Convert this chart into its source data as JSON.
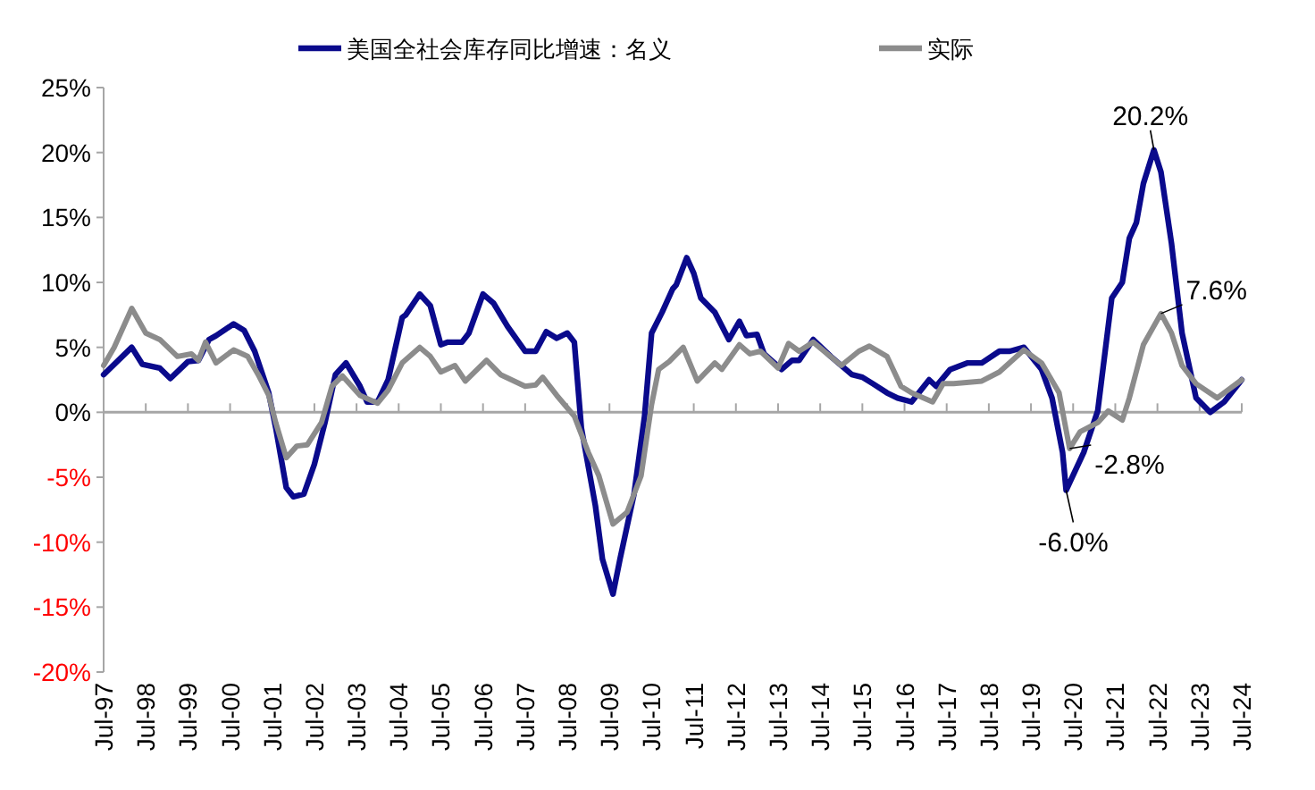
{
  "chart_data": {
    "type": "line",
    "legend": "top",
    "marker": "none",
    "line_style": "solid",
    "xlim": [
      "1997-07",
      "2024-07"
    ],
    "xticks": [
      {
        "value": "1997-07",
        "label": "Jul-97"
      },
      {
        "value": "1998-07",
        "label": "Jul-98"
      },
      {
        "value": "1999-07",
        "label": "Jul-99"
      },
      {
        "value": "2000-07",
        "label": "Jul-00"
      },
      {
        "value": "2001-07",
        "label": "Jul-01"
      },
      {
        "value": "2002-07",
        "label": "Jul-02"
      },
      {
        "value": "2003-07",
        "label": "Jul-03"
      },
      {
        "value": "2004-07",
        "label": "Jul-04"
      },
      {
        "value": "2005-07",
        "label": "Jul-05"
      },
      {
        "value": "2006-07",
        "label": "Jul-06"
      },
      {
        "value": "2007-07",
        "label": "Jul-07"
      },
      {
        "value": "2008-07",
        "label": "Jul-08"
      },
      {
        "value": "2009-07",
        "label": "Jul-09"
      },
      {
        "value": "2010-07",
        "label": "Jul-10"
      },
      {
        "value": "2011-07",
        "label": "Jul-11"
      },
      {
        "value": "2012-07",
        "label": "Jul-12"
      },
      {
        "value": "2013-07",
        "label": "Jul-13"
      },
      {
        "value": "2014-07",
        "label": "Jul-14"
      },
      {
        "value": "2015-07",
        "label": "Jul-15"
      },
      {
        "value": "2016-07",
        "label": "Jul-16"
      },
      {
        "value": "2017-07",
        "label": "Jul-17"
      },
      {
        "value": "2018-07",
        "label": "Jul-18"
      },
      {
        "value": "2019-07",
        "label": "Jul-19"
      },
      {
        "value": "2020-07",
        "label": "Jul-20"
      },
      {
        "value": "2021-07",
        "label": "Jul-21"
      },
      {
        "value": "2022-07",
        "label": "Jul-22"
      },
      {
        "value": "2023-07",
        "label": "Jul-23"
      },
      {
        "value": "2024-07",
        "label": "Jul-24"
      }
    ],
    "ylim": [
      -20,
      25
    ],
    "yticks": [
      {
        "value": -20,
        "label": "-20%"
      },
      {
        "value": -15,
        "label": "-15%"
      },
      {
        "value": -10,
        "label": "-10%"
      },
      {
        "value": -5,
        "label": "-5%"
      },
      {
        "value": 0,
        "label": "0%"
      },
      {
        "value": 5,
        "label": "5%"
      },
      {
        "value": 10,
        "label": "10%"
      },
      {
        "value": 15,
        "label": "15%"
      },
      {
        "value": 20,
        "label": "20%"
      },
      {
        "value": 25,
        "label": "25%"
      }
    ],
    "series": [
      {
        "name": "美国全社会库存同比增速：名义",
        "color": "#0a0a8c",
        "x": [
          "1997-07",
          "1998-03",
          "1998-06",
          "1998-11",
          "1999-02",
          "1999-07",
          "1999-10",
          "2000-01",
          "2000-03",
          "2000-08",
          "2000-11",
          "2001-02",
          "2001-06",
          "2001-08",
          "2001-11",
          "2002-01",
          "2002-04",
          "2002-07",
          "2002-10",
          "2003-01",
          "2003-04",
          "2003-08",
          "2003-10",
          "2004-01",
          "2004-04",
          "2004-08",
          "2004-09",
          "2005-01",
          "2005-04",
          "2005-07",
          "2005-09",
          "2006-01",
          "2006-03",
          "2006-07",
          "2006-10",
          "2007-02",
          "2007-07",
          "2007-10",
          "2008-01",
          "2008-04",
          "2008-07",
          "2008-09",
          "2008-11",
          "2009-03",
          "2009-05",
          "2009-08",
          "2009-10",
          "2010-02",
          "2010-05",
          "2010-07",
          "2010-10",
          "2011-01",
          "2011-02",
          "2011-05",
          "2011-07",
          "2011-09",
          "2012-01",
          "2012-05",
          "2012-08",
          "2012-10",
          "2013-01",
          "2013-03",
          "2013-08",
          "2013-11",
          "2014-01",
          "2014-05",
          "2014-10",
          "2015-04",
          "2015-07",
          "2015-10",
          "2016-02",
          "2016-05",
          "2016-09",
          "2017-02",
          "2017-04",
          "2017-08",
          "2018-01",
          "2018-05",
          "2018-10",
          "2019-01",
          "2019-05",
          "2019-10",
          "2020-01",
          "2020-04",
          "2020-05",
          "2020-10",
          "2021-02",
          "2021-06",
          "2021-09",
          "2021-11",
          "2022-01",
          "2022-03",
          "2022-06",
          "2022-08",
          "2022-11",
          "2023-02",
          "2023-06",
          "2023-10",
          "2024-02",
          "2024-07"
        ],
        "values": [
          2.9,
          5.0,
          3.7,
          3.4,
          2.6,
          3.9,
          4.0,
          5.6,
          5.9,
          6.8,
          6.3,
          4.7,
          1.5,
          -1.2,
          -5.8,
          -6.5,
          -6.3,
          -4.0,
          -0.8,
          2.9,
          3.8,
          2.0,
          0.8,
          0.8,
          2.5,
          7.3,
          7.5,
          9.1,
          8.2,
          5.2,
          5.4,
          5.4,
          6.1,
          9.1,
          8.4,
          6.6,
          4.7,
          4.7,
          6.2,
          5.7,
          6.1,
          5.4,
          -1.2,
          -7.2,
          -11.3,
          -14.0,
          -11.3,
          -6.3,
          -0.3,
          6.1,
          7.7,
          9.5,
          9.8,
          11.9,
          10.7,
          8.8,
          7.7,
          5.6,
          7.0,
          5.9,
          6.0,
          4.5,
          3.3,
          4.0,
          4.0,
          5.6,
          4.3,
          2.9,
          2.7,
          2.2,
          1.5,
          1.1,
          0.8,
          2.5,
          2.0,
          3.3,
          3.8,
          3.8,
          4.7,
          4.7,
          5.0,
          3.3,
          1.1,
          -3.1,
          -6.0,
          -3.1,
          0.1,
          8.8,
          10.0,
          13.4,
          14.6,
          17.6,
          20.2,
          18.5,
          13.0,
          6.1,
          1.1,
          0.0,
          0.8,
          2.5
        ]
      },
      {
        "name": "实际",
        "color": "#8c8c8c",
        "x": [
          "1997-07",
          "1997-10",
          "1998-03",
          "1998-07",
          "1998-11",
          "1999-04",
          "1999-08",
          "1999-10",
          "1999-12",
          "2000-03",
          "2000-08",
          "2000-12",
          "2001-03",
          "2001-06",
          "2001-08",
          "2001-11",
          "2002-02",
          "2002-05",
          "2002-09",
          "2002-12",
          "2003-03",
          "2003-08",
          "2004-01",
          "2004-04",
          "2004-08",
          "2005-01",
          "2005-04",
          "2005-07",
          "2005-11",
          "2006-02",
          "2006-08",
          "2006-12",
          "2007-07",
          "2007-10",
          "2007-12",
          "2008-04",
          "2008-09",
          "2009-01",
          "2009-04",
          "2009-08",
          "2009-12",
          "2010-04",
          "2010-07",
          "2010-09",
          "2010-12",
          "2011-04",
          "2011-08",
          "2012-01",
          "2012-03",
          "2012-08",
          "2012-11",
          "2013-02",
          "2013-07",
          "2013-10",
          "2014-01",
          "2014-05",
          "2015-01",
          "2015-06",
          "2015-09",
          "2016-02",
          "2016-06",
          "2016-09",
          "2017-03",
          "2017-06",
          "2017-09",
          "2018-05",
          "2018-10",
          "2019-05",
          "2019-10",
          "2020-03",
          "2020-06",
          "2020-09",
          "2021-02",
          "2021-05",
          "2021-09",
          "2021-11",
          "2022-03",
          "2022-08",
          "2022-11",
          "2023-02",
          "2023-06",
          "2023-12",
          "2024-07"
        ],
        "values": [
          3.6,
          5.0,
          8.0,
          6.1,
          5.6,
          4.3,
          4.5,
          4.0,
          5.4,
          3.8,
          4.8,
          4.3,
          2.9,
          1.3,
          -0.8,
          -3.5,
          -2.6,
          -2.5,
          -0.8,
          2.0,
          2.8,
          1.3,
          0.7,
          1.7,
          3.8,
          5.0,
          4.3,
          3.1,
          3.6,
          2.4,
          4.0,
          2.9,
          2.0,
          2.1,
          2.7,
          1.3,
          -0.3,
          -3.1,
          -4.9,
          -8.6,
          -7.7,
          -4.9,
          0.6,
          3.3,
          3.9,
          5.0,
          2.4,
          3.8,
          3.3,
          5.2,
          4.5,
          4.7,
          3.4,
          5.3,
          4.7,
          5.4,
          3.6,
          4.7,
          5.1,
          4.3,
          2.0,
          1.5,
          0.8,
          2.2,
          2.2,
          2.4,
          3.1,
          4.8,
          3.8,
          1.5,
          -2.8,
          -1.5,
          -0.8,
          0.1,
          -0.6,
          1.1,
          5.2,
          7.6,
          6.1,
          3.6,
          2.2,
          1.1,
          2.5
        ]
      }
    ],
    "annotations": [
      {
        "text": "20.2%",
        "x": "2022-06",
        "y": 20.2
      },
      {
        "text": "7.6%",
        "x": "2022-08",
        "y": 7.6
      },
      {
        "text": "-2.8%",
        "x": "2020-06",
        "y": -2.8
      },
      {
        "text": "-6.0%",
        "x": "2020-05",
        "y": -6.0
      }
    ]
  }
}
